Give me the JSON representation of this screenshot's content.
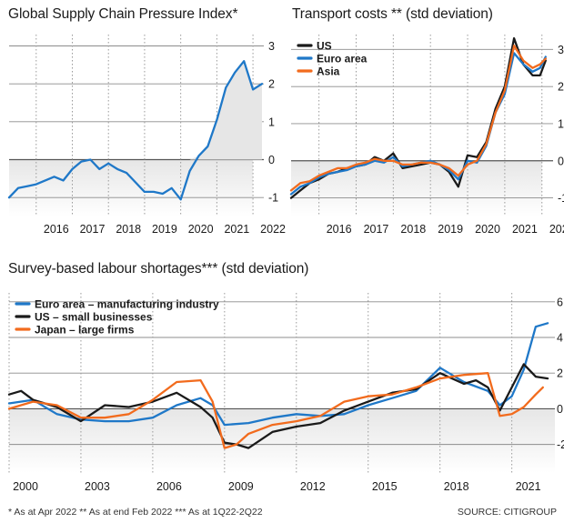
{
  "panels": {
    "gscpi": {
      "title": "Global Supply Chain Pressure Index*"
    },
    "transport": {
      "title": "Transport costs **  (std deviation)"
    },
    "labour": {
      "title": "Survey-based labour shortages*** (std deviation)"
    }
  },
  "footnotes": {
    "left": "* As at Apr 2022  ** As at end Feb 2022  *** As at 1Q22-2Q22",
    "source": "SOURCE: CITIGROUP"
  },
  "colors": {
    "blue": "#1f78c8",
    "black": "#1a1a1a",
    "orange": "#f26b1d",
    "shade": "#e6e6e6",
    "grid": "#8c8c8c",
    "dotted": "#9a9a9a"
  },
  "chart_data": [
    {
      "type": "area",
      "title": "Global Supply Chain Pressure Index*",
      "xlabel": "",
      "ylabel": "",
      "xlim": [
        2015.25,
        2022.3
      ],
      "ylim": [
        -1.5,
        3.3
      ],
      "x_ticks": [
        "2016",
        "2017",
        "2018",
        "2019",
        "2020",
        "2021",
        "2022"
      ],
      "y_ticks": [
        "3",
        "2",
        "1",
        "0",
        "-1"
      ],
      "grid": true,
      "series": [
        {
          "color": "#1f78c8",
          "x": [
            2015.25,
            2015.5,
            2015.75,
            2016.0,
            2016.25,
            2016.5,
            2016.75,
            2017.0,
            2017.25,
            2017.5,
            2017.75,
            2018.0,
            2018.25,
            2018.5,
            2018.75,
            2019.0,
            2019.25,
            2019.5,
            2019.75,
            2020.0,
            2020.25,
            2020.5,
            2020.75,
            2021.0,
            2021.25,
            2021.5,
            2021.75,
            2022.0,
            2022.25
          ],
          "y": [
            -1.0,
            -0.75,
            -0.7,
            -0.65,
            -0.55,
            -0.45,
            -0.55,
            -0.25,
            -0.05,
            0.0,
            -0.25,
            -0.1,
            -0.25,
            -0.35,
            -0.6,
            -0.85,
            -0.85,
            -0.9,
            -0.75,
            -1.05,
            -0.3,
            0.1,
            0.35,
            1.05,
            1.9,
            2.3,
            2.6,
            1.85,
            2.0
          ]
        }
      ]
    },
    {
      "type": "line",
      "title": "Transport costs **  (std deviation)",
      "xlabel": "",
      "ylabel": "",
      "xlim": [
        2015.25,
        2022.3
      ],
      "ylim": [
        -1.5,
        3.4
      ],
      "x_ticks": [
        "2016",
        "2017",
        "2018",
        "2019",
        "2020",
        "2021",
        "2022"
      ],
      "y_ticks": [
        "3",
        "2",
        "1",
        "0",
        "-1"
      ],
      "grid": true,
      "legend": "top-left",
      "series": [
        {
          "name": "US",
          "color": "#1a1a1a",
          "x": [
            2015.25,
            2015.5,
            2015.75,
            2016.0,
            2016.25,
            2016.5,
            2016.75,
            2017.0,
            2017.25,
            2017.5,
            2017.75,
            2018.0,
            2018.25,
            2018.5,
            2018.75,
            2019.0,
            2019.25,
            2019.5,
            2019.75,
            2020.0,
            2020.25,
            2020.5,
            2020.75,
            2021.0,
            2021.25,
            2021.5,
            2021.75,
            2021.95,
            2022.1
          ],
          "y": [
            -1.0,
            -0.8,
            -0.6,
            -0.5,
            -0.35,
            -0.3,
            -0.2,
            -0.15,
            -0.1,
            0.1,
            0.0,
            0.2,
            -0.2,
            -0.15,
            -0.1,
            -0.05,
            -0.1,
            -0.3,
            -0.7,
            0.15,
            0.1,
            0.5,
            1.4,
            2.0,
            3.3,
            2.6,
            2.3,
            2.3,
            2.7
          ]
        },
        {
          "name": "Euro area",
          "color": "#1f78c8",
          "x": [
            2015.25,
            2015.5,
            2015.75,
            2016.0,
            2016.25,
            2016.5,
            2016.75,
            2017.0,
            2017.25,
            2017.5,
            2017.75,
            2018.0,
            2018.25,
            2018.5,
            2018.75,
            2019.0,
            2019.25,
            2019.5,
            2019.75,
            2020.0,
            2020.25,
            2020.5,
            2020.75,
            2021.0,
            2021.25,
            2021.5,
            2021.75,
            2021.95,
            2022.1
          ],
          "y": [
            -0.9,
            -0.7,
            -0.6,
            -0.45,
            -0.35,
            -0.3,
            -0.25,
            -0.15,
            -0.1,
            0.0,
            -0.05,
            0.1,
            -0.15,
            -0.1,
            -0.05,
            0.0,
            -0.1,
            -0.25,
            -0.5,
            0.0,
            -0.05,
            0.4,
            1.3,
            1.8,
            2.9,
            2.6,
            2.4,
            2.5,
            2.8
          ]
        },
        {
          "name": "Asia",
          "color": "#f26b1d",
          "x": [
            2015.25,
            2015.5,
            2015.75,
            2016.0,
            2016.25,
            2016.5,
            2016.75,
            2017.0,
            2017.25,
            2017.5,
            2017.75,
            2018.0,
            2018.25,
            2018.5,
            2018.75,
            2019.0,
            2019.25,
            2019.5,
            2019.75,
            2020.0,
            2020.25,
            2020.5,
            2020.75,
            2021.0,
            2021.25,
            2021.5,
            2021.75,
            2021.95,
            2022.1
          ],
          "y": [
            -0.8,
            -0.6,
            -0.55,
            -0.4,
            -0.3,
            -0.2,
            -0.2,
            -0.1,
            -0.05,
            0.05,
            0.0,
            0.0,
            -0.1,
            -0.1,
            -0.05,
            -0.05,
            -0.1,
            -0.2,
            -0.4,
            -0.1,
            0.0,
            0.45,
            1.3,
            1.9,
            3.1,
            2.7,
            2.5,
            2.6,
            2.75
          ]
        }
      ]
    },
    {
      "type": "line",
      "title": "Survey-based labour shortages*** (std deviation)",
      "xlabel": "",
      "ylabel": "",
      "xlim": [
        2000,
        2022.8
      ],
      "ylim": [
        -3.6,
        6.5
      ],
      "x_ticks": [
        "2000",
        "2003",
        "2006",
        "2009",
        "2012",
        "2015",
        "2018",
        "2021"
      ],
      "y_ticks": [
        "6",
        "4",
        "2",
        "0",
        "-2"
      ],
      "grid": true,
      "legend": "top-left",
      "series": [
        {
          "name": "Euro area – manufacturing industry",
          "color": "#1f78c8",
          "x": [
            2000,
            2001,
            2002,
            2003,
            2004,
            2005,
            2006,
            2007,
            2008,
            2008.5,
            2009,
            2010,
            2011,
            2012,
            2013,
            2014,
            2015,
            2016,
            2017,
            2018,
            2019,
            2020,
            2020.5,
            2021,
            2021.5,
            2022,
            2022.5
          ],
          "y": [
            0.3,
            0.5,
            -0.3,
            -0.6,
            -0.7,
            -0.7,
            -0.5,
            0.2,
            0.6,
            0.2,
            -0.9,
            -0.8,
            -0.5,
            -0.3,
            -0.4,
            -0.3,
            0.2,
            0.6,
            1.0,
            2.3,
            1.5,
            1.0,
            0.2,
            0.7,
            2.2,
            4.6,
            4.8
          ]
        },
        {
          "name": "US – small businesses",
          "color": "#1a1a1a",
          "x": [
            2000,
            2000.5,
            2001,
            2002,
            2003,
            2004,
            2005,
            2006,
            2007,
            2008,
            2008.5,
            2009,
            2009.5,
            2010,
            2011,
            2012,
            2013,
            2014,
            2015,
            2016,
            2017,
            2018,
            2019,
            2019.5,
            2020,
            2020.5,
            2021,
            2021.5,
            2022,
            2022.5
          ],
          "y": [
            0.8,
            1.0,
            0.5,
            0.1,
            -0.7,
            0.2,
            0.1,
            0.4,
            0.9,
            0.1,
            -0.5,
            -1.9,
            -2.0,
            -2.2,
            -1.3,
            -1.0,
            -0.8,
            -0.1,
            0.4,
            0.9,
            1.1,
            2.0,
            1.4,
            1.6,
            1.2,
            -0.1,
            1.2,
            2.5,
            1.8,
            1.7
          ]
        },
        {
          "name": "Japan – large firms",
          "color": "#f26b1d",
          "x": [
            2000,
            2001,
            2002,
            2003,
            2004,
            2005,
            2006,
            2007,
            2008,
            2008.5,
            2009,
            2009.5,
            2010,
            2011,
            2012,
            2013,
            2014,
            2015,
            2016,
            2017,
            2018,
            2019,
            2020,
            2020.5,
            2021,
            2021.5,
            2022,
            2022.3
          ],
          "y": [
            0.0,
            0.4,
            0.2,
            -0.5,
            -0.5,
            -0.3,
            0.5,
            1.5,
            1.6,
            0.4,
            -2.2,
            -2.0,
            -1.4,
            -0.9,
            -0.7,
            -0.4,
            0.4,
            0.7,
            0.8,
            1.2,
            1.7,
            1.9,
            2.0,
            -0.4,
            -0.3,
            0.1,
            0.8,
            1.2
          ]
        }
      ]
    }
  ]
}
